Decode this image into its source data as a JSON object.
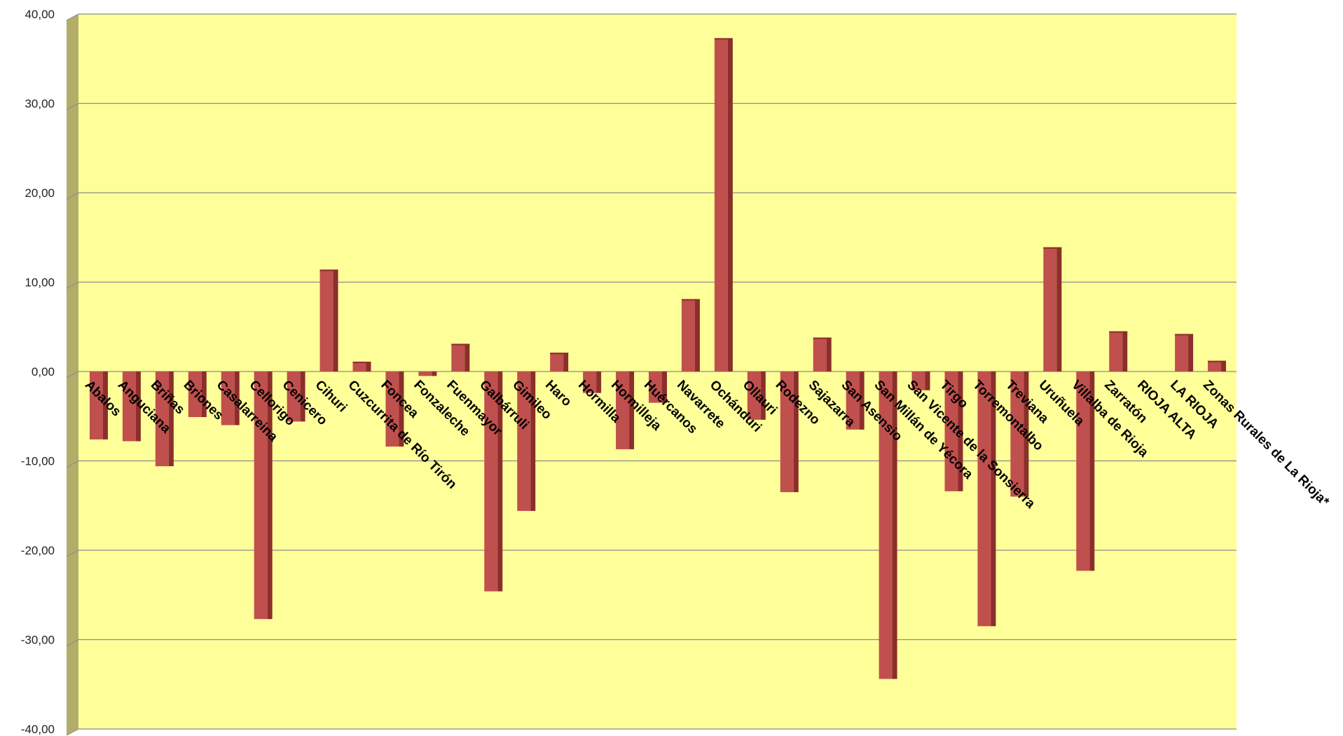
{
  "chart_data": {
    "type": "bar",
    "categories": [
      "Abalos",
      "Anguciana",
      "Briñas",
      "Briones",
      "Casalarreina",
      "Cellorigo",
      "Cenicero",
      "Cihuri",
      "Cuzcurrita de Río Tirón",
      "Foncea",
      "Fonzaleche",
      "Fuenmayor",
      "Galbárruli",
      "Gimileo",
      "Haro",
      "Hormilla",
      "Hormilleja",
      "Huércanos",
      "Navarrete",
      "Ochánduri",
      "Ollauri",
      "Rodezno",
      "Sajazarra",
      "San Asensio",
      "San Millán de Yécora",
      "San Vicente de la Sonsierra",
      "Tirgo",
      "Torremontalbo",
      "Treviana",
      "Uruñuela",
      "Villalba de Rioja",
      "Zarratón",
      "RIOJA ALTA",
      "LA RIOJA",
      "Zonas Rurales de La Rioja*"
    ],
    "values": [
      -7.6,
      -7.8,
      -10.6,
      -5.1,
      -6.0,
      -27.7,
      -5.6,
      11.4,
      1.1,
      -8.4,
      -0.5,
      3.1,
      -24.6,
      -15.6,
      2.1,
      -2.4,
      -8.7,
      -3.5,
      8.1,
      37.3,
      -5.4,
      -13.5,
      3.8,
      -6.5,
      -34.4,
      -2.1,
      -13.4,
      -28.5,
      -14.0,
      13.9,
      -22.3,
      4.5,
      0.0,
      4.2,
      1.2
    ],
    "title": "",
    "xlabel": "",
    "ylabel": "",
    "ylim": [
      -40,
      40
    ],
    "yticks": [
      "-40,00",
      "-30,00",
      "-20,00",
      "-10,00",
      "0,00",
      "10,00",
      "20,00",
      "30,00",
      "40,00"
    ],
    "grid": true,
    "legend": "none",
    "colors": {
      "plot_background": "#ffff99",
      "bar_front": "#c0504d",
      "bar_side": "#8b2e2c",
      "wall": "#b3ad6a",
      "grid": "#8c8c8c"
    }
  }
}
